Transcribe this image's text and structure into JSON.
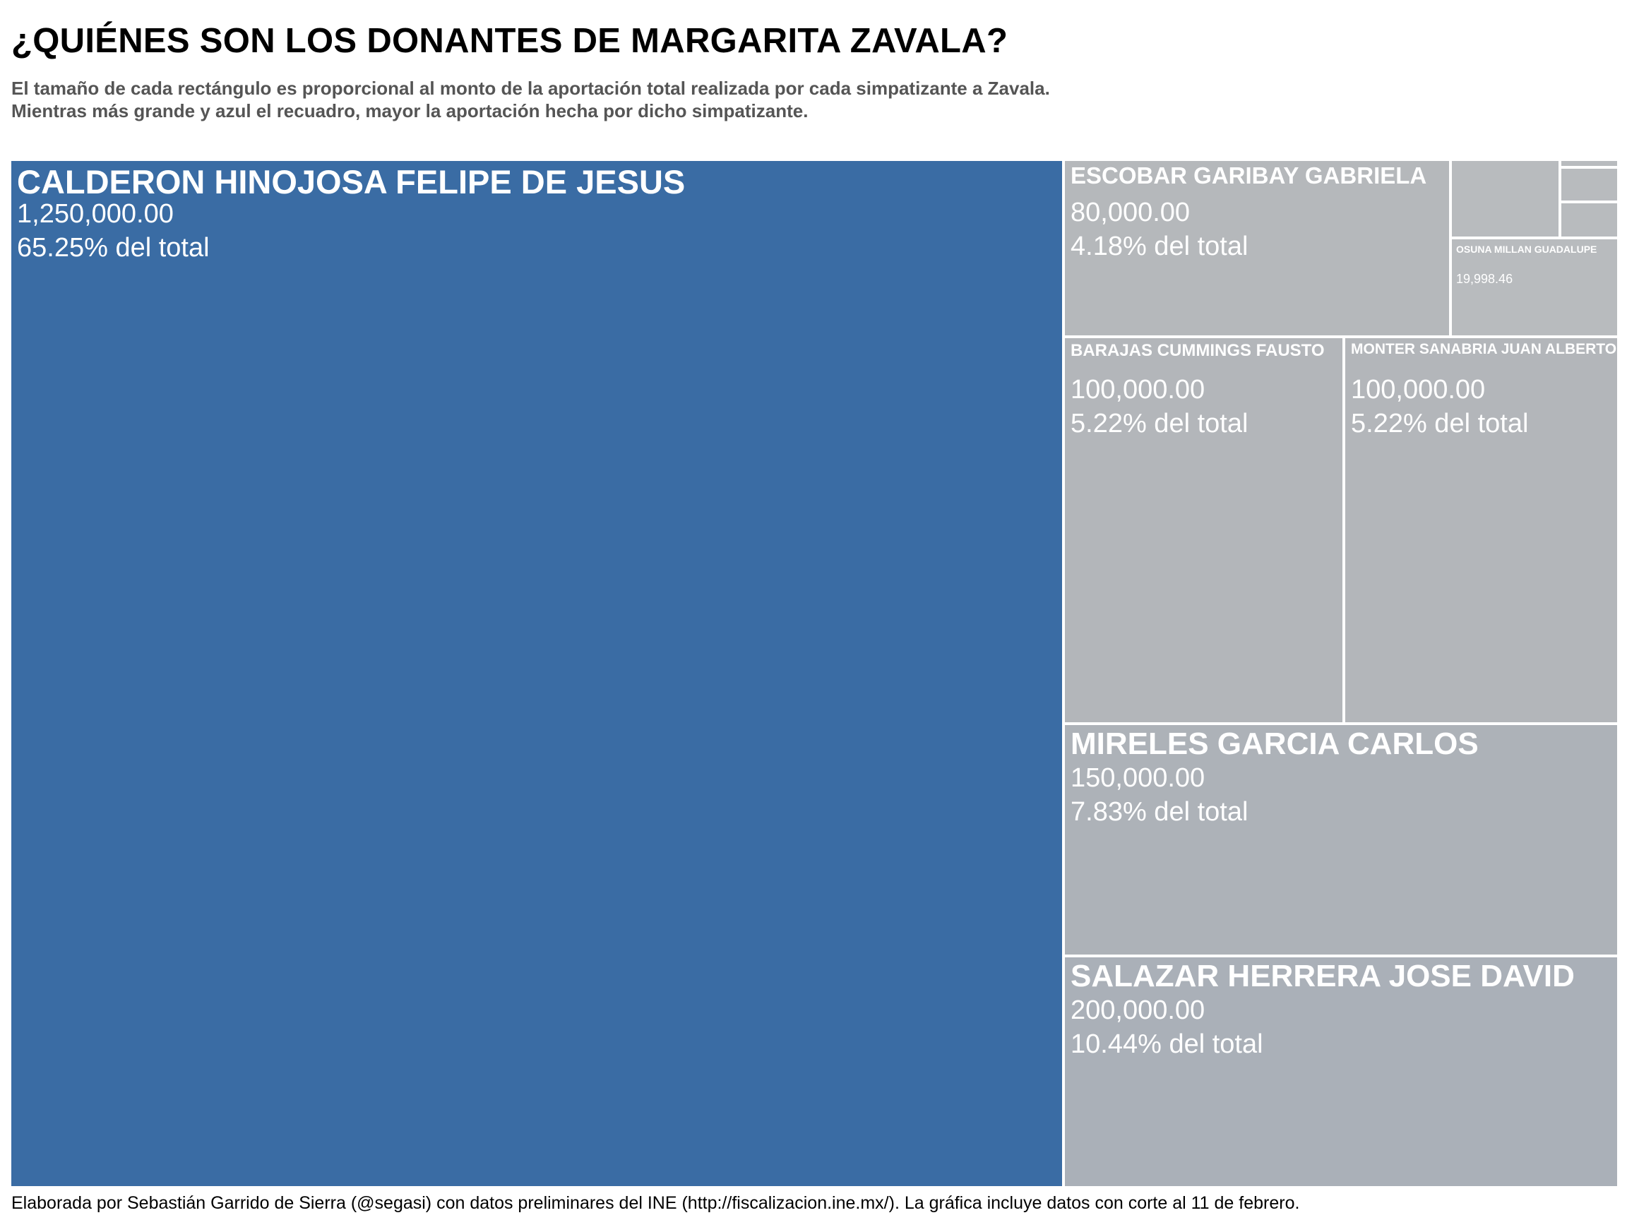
{
  "title": "¿QUIÉNES SON LOS DONANTES DE MARGARITA ZAVALA?",
  "subtitle_line1": "El tamaño de cada rectángulo es proporcional al monto de la aportación total realizada por cada simpatizante a Zavala.",
  "subtitle_line2": "Mientras más grande y azul el recuadro, mayor la aportación hecha por dicho simpatizante.",
  "caption": "Elaborada por Sebastián Garrido de Sierra (@segasi) con datos preliminares del INE (http://fiscalizacion.ine.mx/). La gráfica incluye datos con corte al 11 de febrero.",
  "chart_data": {
    "type": "treemap",
    "colors": {
      "max": "#3a6ca4",
      "min": "#b8bbbe",
      "border": "#ffffff"
    },
    "items": [
      {
        "name": "CALDERON HINOJOSA  FELIPE DE JESUS",
        "amount_label": "1,250,000.00",
        "share_label": "65.25% del total",
        "value": 1250000,
        "share": 65.25,
        "color": "#3a6ca4"
      },
      {
        "name": "SALAZAR HERRERA  JOSE DAVID",
        "amount_label": "200,000.00",
        "share_label": "10.44% del total",
        "value": 200000,
        "share": 10.44,
        "color": "#aab0b8"
      },
      {
        "name": "MIRELES GARCIA  CARLOS",
        "amount_label": "150,000.00",
        "share_label": "7.83% del total",
        "value": 150000,
        "share": 7.83,
        "color": "#adb2b8"
      },
      {
        "name": "BARAJAS CUMMINGS  FAUSTO",
        "amount_label": "100,000.00",
        "share_label": "5.22% del total",
        "value": 100000,
        "share": 5.22,
        "color": "#b3b6ba"
      },
      {
        "name": "MONTER SANABRIA  JUAN ALBERTO",
        "amount_label": "100,000.00",
        "share_label": "5.22% del total",
        "value": 100000,
        "share": 5.22,
        "color": "#b3b6ba"
      },
      {
        "name": "ESCOBAR GARIBAY  GABRIELA",
        "amount_label": "80,000.00",
        "share_label": "4.18% del total",
        "value": 80000,
        "share": 4.18,
        "color": "#b5b8bb"
      },
      {
        "name": "OSUNA MILLAN  GUADALUPE",
        "amount_label": "19,998.46",
        "share_label": "",
        "value": 19998.46,
        "share": null,
        "color": "#b8bbbe"
      },
      {
        "name": "",
        "amount_label": "",
        "share_label": "",
        "value": null,
        "share": null,
        "color": "#b8bbbe"
      },
      {
        "name": "",
        "amount_label": "",
        "share_label": "",
        "value": null,
        "share": null,
        "color": "#b8bbbe"
      },
      {
        "name": "",
        "amount_label": "",
        "share_label": "",
        "value": null,
        "share": null,
        "color": "#b8bbbe"
      },
      {
        "name": "",
        "amount_label": "",
        "share_label": "",
        "value": null,
        "share": null,
        "color": "#b8bbbe"
      }
    ]
  }
}
